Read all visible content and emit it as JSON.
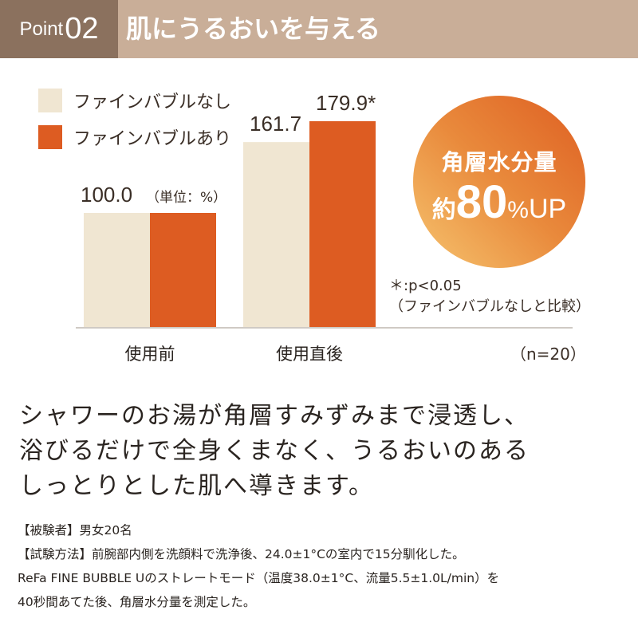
{
  "header": {
    "point_label": "Point",
    "point_number": "02",
    "title": "肌にうるおいを与える",
    "colors": {
      "dark": "#8b715e",
      "light": "#c9ae98"
    }
  },
  "chart_data": {
    "type": "bar",
    "categories": [
      "使用前",
      "使用直後"
    ],
    "series": [
      {
        "name": "ファインバブルなし",
        "color": "#f0e6d2",
        "values": [
          100.0,
          161.7
        ],
        "labels": [
          "100.0",
          "161.7"
        ]
      },
      {
        "name": "ファインバブルあり",
        "color": "#dd5c22",
        "values": [
          100.0,
          179.9
        ],
        "labels": [
          "",
          "179.9*"
        ]
      }
    ],
    "unit_label": "（単位：%）",
    "legend": "top-left",
    "grid": false
  },
  "badge": {
    "line1": "角層水分量",
    "prefix": "約",
    "value": "80",
    "percent": "%",
    "suffix": "UP"
  },
  "notes": {
    "significance": "＊:p<0.05",
    "comparison": "（ファインバブルなしと比較）",
    "n": "（n=20）"
  },
  "body": {
    "lines": [
      "シャワーのお湯が角層すみずみまで浸透し、",
      "浴びるだけで全身くまなく、うるおいのある",
      "しっとりとした肌へ導きます。"
    ]
  },
  "footnote": {
    "lines": [
      "【被験者】男女20名",
      "【試験方法】前腕部内側を洗顔料で洗浄後、24.0±1°Cの室内で15分馴化した。",
      "ReFa FINE BUBBLE Uのストレートモード（温度38.0±1°C、流量5.5±1.0L/min）を",
      "40秒間あてた後、角層水分量を測定した。"
    ]
  }
}
